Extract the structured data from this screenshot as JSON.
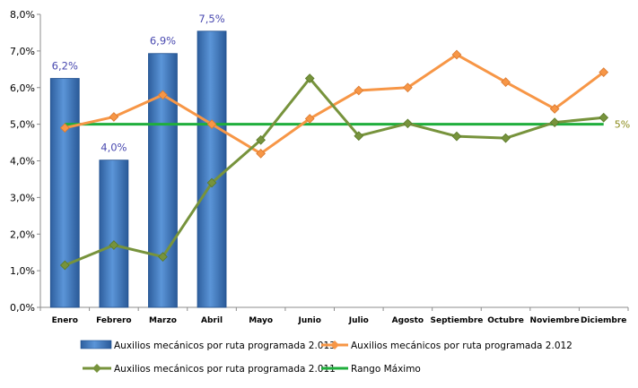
{
  "chart_data": {
    "type": "bar",
    "categories": [
      "Enero",
      "Febrero",
      "Marzo",
      "Abril",
      "Mayo",
      "Junio",
      "Julio",
      "Agosto",
      "Septiembre",
      "Octubre",
      "Noviembre",
      "Diciembre"
    ],
    "series": [
      {
        "name": "Auxilios mecánicos por ruta programada 2.013",
        "type": "bar",
        "color": "#3a78c4",
        "values": [
          6.25,
          4.02,
          6.93,
          7.54,
          null,
          null,
          null,
          null,
          null,
          null,
          null,
          null
        ]
      },
      {
        "name": "Auxilios mecánicos por ruta programada 2.012",
        "type": "line",
        "color": "#f79646",
        "values": [
          4.9,
          5.2,
          5.8,
          5.0,
          4.2,
          5.15,
          5.92,
          6.0,
          6.9,
          6.15,
          5.42,
          6.42
        ]
      },
      {
        "name": "Auxilios mecánicos por ruta programada 2.011",
        "type": "line",
        "color": "#77933c",
        "values": [
          1.15,
          1.7,
          1.38,
          3.4,
          4.57,
          6.25,
          4.68,
          5.02,
          4.67,
          4.62,
          5.05,
          5.18
        ]
      },
      {
        "name": "Rango Máximo",
        "type": "line",
        "color": "#1fae3c",
        "values": [
          5,
          5,
          5,
          5,
          5,
          5,
          5,
          5,
          5,
          5,
          5,
          5
        ]
      }
    ],
    "data_labels": [
      "6,2%",
      "4,0%",
      "6,9%",
      "7,5%"
    ],
    "range_label": "5%",
    "y_ticks": [
      "0,0%",
      "1,0%",
      "2,0%",
      "3,0%",
      "4,0%",
      "5,0%",
      "6,0%",
      "7,0%",
      "8,0%"
    ],
    "ylim": [
      0,
      8
    ],
    "legend_position": "bottom",
    "grid": false
  }
}
